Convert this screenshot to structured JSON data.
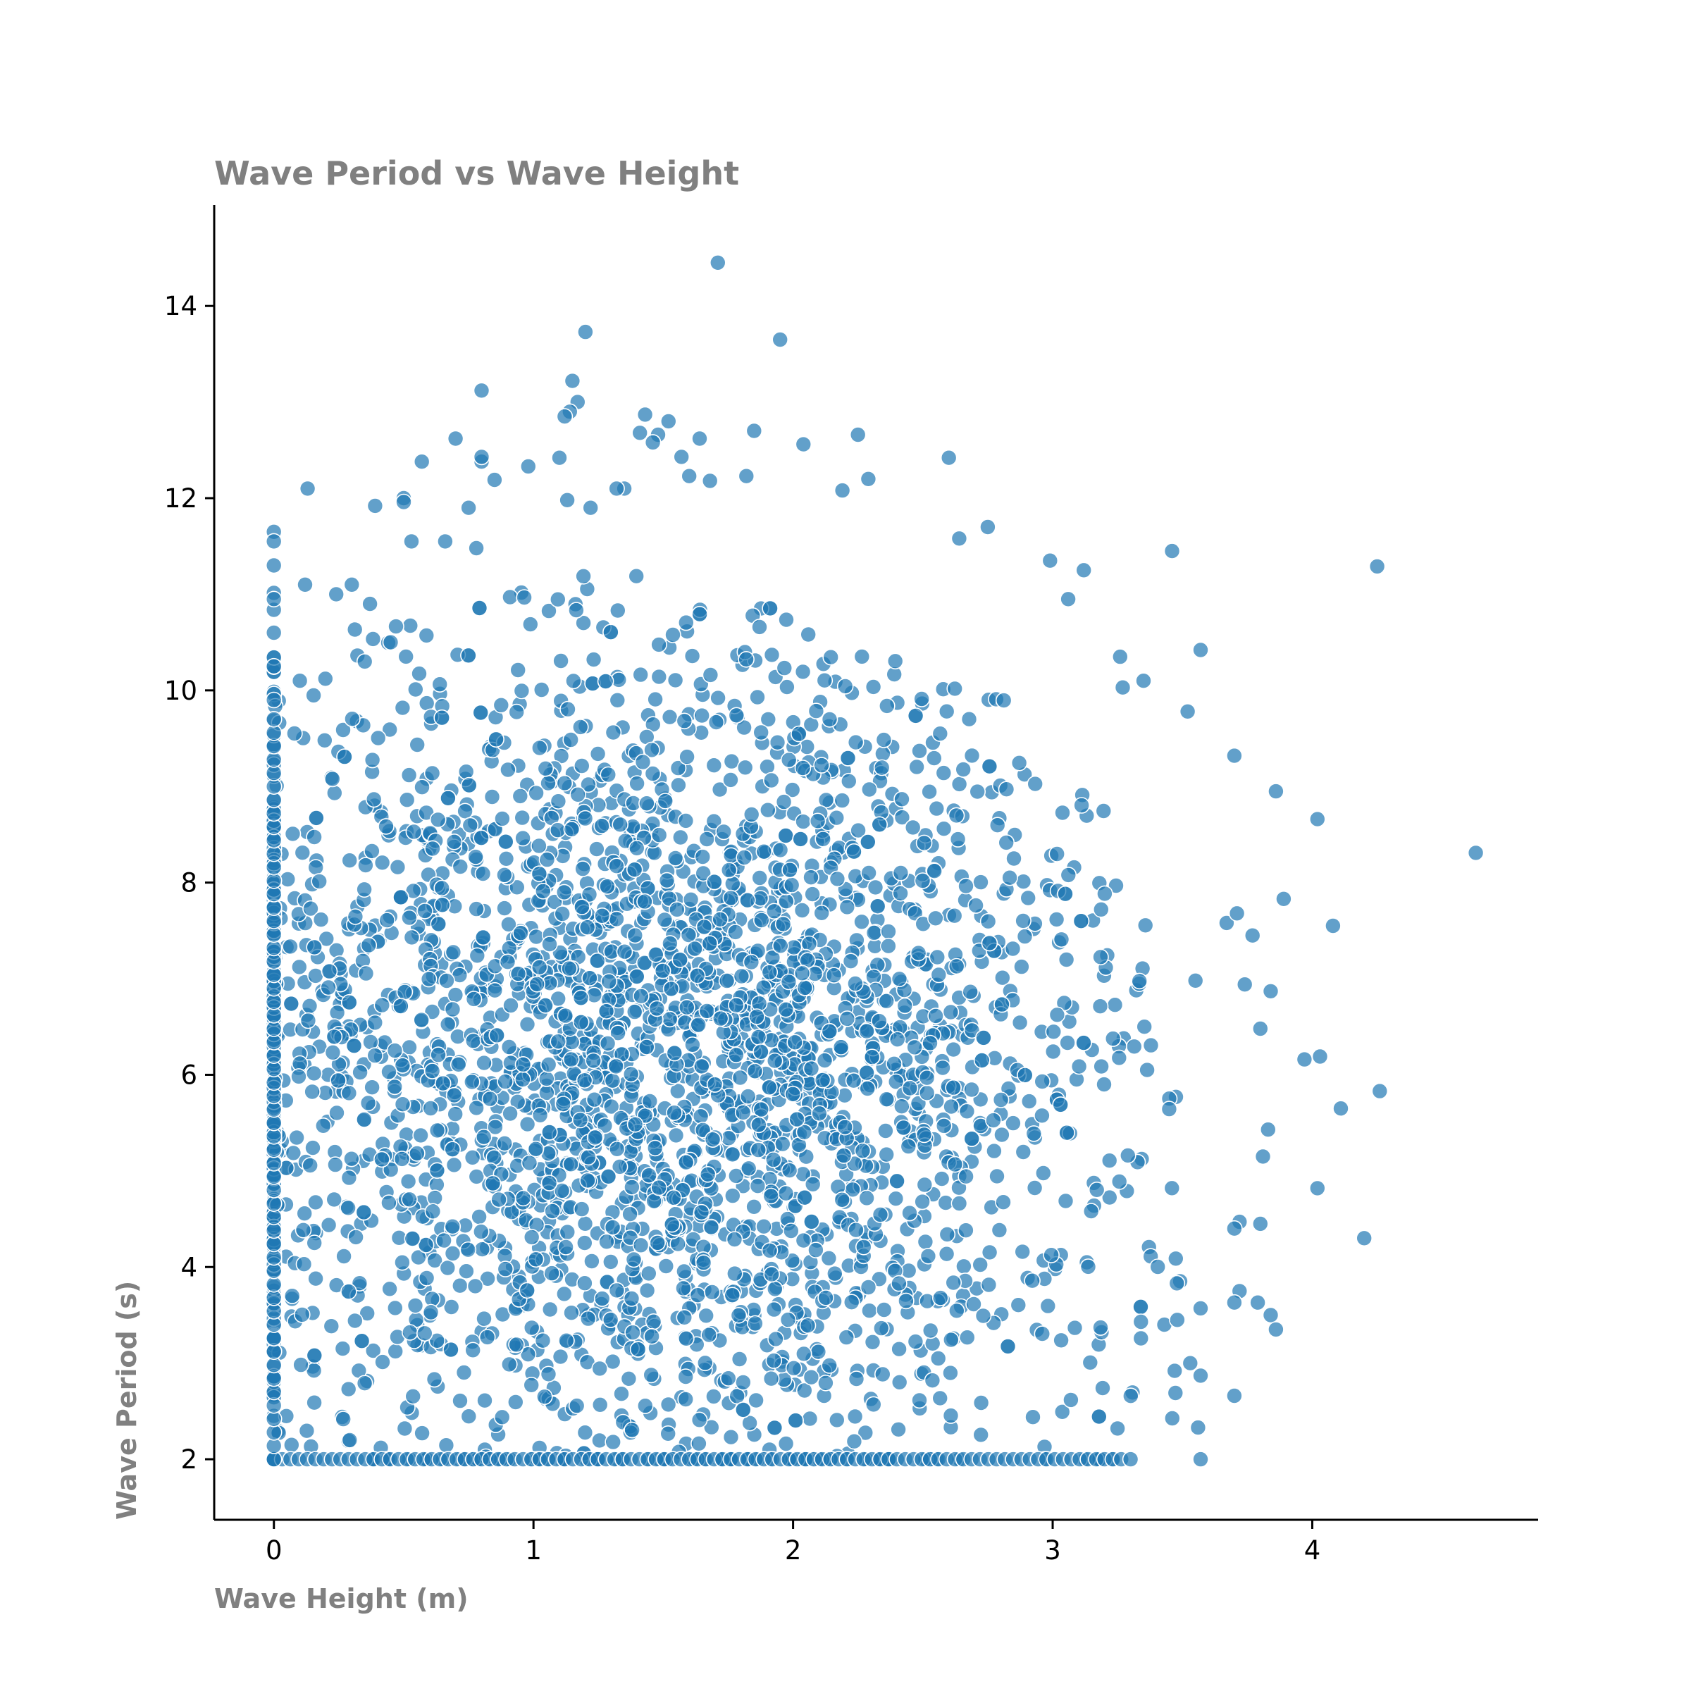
{
  "chart_data": {
    "type": "scatter",
    "title": "Wave Period vs Wave Height",
    "xlabel": "Wave Height (m)",
    "ylabel": "Wave Period (s)",
    "xlim": [
      -0.23,
      4.87
    ],
    "ylim": [
      1.37,
      15.05
    ],
    "xticks": [
      0,
      1,
      2,
      3,
      4
    ],
    "yticks": [
      2,
      4,
      6,
      8,
      10,
      12,
      14
    ],
    "grid": false,
    "legend": "none",
    "marker_color": "#1f77b4",
    "marker_edge_color": "#ffffff",
    "marker_alpha": 0.7,
    "series": [
      {
        "points": [
          [
            1.71,
            14.45
          ],
          [
            1.2,
            13.73
          ],
          [
            1.95,
            13.65
          ],
          [
            1.15,
            13.22
          ],
          [
            0.8,
            13.12
          ],
          [
            1.17,
            13.0
          ],
          [
            1.14,
            12.9
          ],
          [
            1.12,
            12.85
          ],
          [
            1.43,
            12.87
          ],
          [
            1.52,
            12.8
          ],
          [
            1.41,
            12.68
          ],
          [
            1.48,
            12.66
          ],
          [
            1.46,
            12.58
          ],
          [
            0.7,
            12.62
          ],
          [
            1.64,
            12.62
          ],
          [
            2.04,
            12.56
          ],
          [
            2.25,
            12.66
          ],
          [
            1.85,
            12.7
          ],
          [
            0.57,
            12.38
          ],
          [
            0.8,
            12.38
          ],
          [
            0.8,
            12.43
          ],
          [
            1.57,
            12.43
          ],
          [
            2.6,
            12.42
          ],
          [
            1.1,
            12.42
          ],
          [
            0.98,
            12.33
          ],
          [
            0.13,
            12.1
          ],
          [
            1.35,
            12.1
          ],
          [
            1.32,
            12.1
          ],
          [
            0.85,
            12.19
          ],
          [
            1.68,
            12.18
          ],
          [
            1.82,
            12.23
          ],
          [
            1.6,
            12.23
          ],
          [
            2.29,
            12.2
          ],
          [
            2.19,
            12.08
          ],
          [
            0.5,
            12.0
          ],
          [
            0.5,
            11.96
          ],
          [
            0.39,
            11.92
          ],
          [
            1.13,
            11.98
          ],
          [
            1.22,
            11.9
          ],
          [
            0.75,
            11.9
          ],
          [
            3.46,
            11.45
          ],
          [
            4.25,
            11.29
          ],
          [
            2.99,
            11.35
          ],
          [
            3.12,
            11.25
          ],
          [
            3.06,
            10.95
          ],
          [
            2.75,
            11.7
          ],
          [
            2.64,
            11.58
          ],
          [
            0.0,
            11.65
          ],
          [
            0.0,
            11.55
          ],
          [
            0.0,
            11.3
          ],
          [
            0.0,
            10.95
          ],
          [
            0.0,
            10.6
          ],
          [
            0.0,
            10.25
          ],
          [
            0.0,
            9.9
          ],
          [
            0.12,
            11.1
          ],
          [
            0.3,
            11.1
          ],
          [
            0.24,
            11.0
          ],
          [
            0.53,
            11.55
          ],
          [
            0.66,
            11.55
          ],
          [
            0.78,
            11.48
          ],
          [
            0.37,
            10.9
          ],
          [
            0.35,
            10.3
          ],
          [
            0.45,
            10.5
          ],
          [
            0.1,
            10.1
          ],
          [
            3.26,
            10.35
          ],
          [
            3.27,
            10.03
          ],
          [
            3.35,
            10.1
          ],
          [
            3.57,
            10.42
          ],
          [
            3.52,
            9.78
          ],
          [
            3.7,
            9.32
          ],
          [
            3.86,
            8.95
          ],
          [
            4.02,
            8.66
          ],
          [
            4.63,
            8.31
          ],
          [
            3.89,
            7.83
          ],
          [
            4.08,
            7.55
          ],
          [
            3.67,
            7.58
          ],
          [
            3.71,
            7.68
          ],
          [
            3.77,
            7.45
          ],
          [
            3.55,
            6.98
          ],
          [
            3.74,
            6.94
          ],
          [
            3.84,
            6.87
          ],
          [
            3.8,
            6.48
          ],
          [
            3.97,
            6.16
          ],
          [
            4.03,
            6.19
          ],
          [
            4.26,
            5.83
          ],
          [
            4.11,
            5.65
          ],
          [
            3.83,
            5.43
          ],
          [
            3.81,
            5.15
          ],
          [
            4.02,
            4.82
          ],
          [
            4.2,
            4.3
          ],
          [
            3.8,
            4.45
          ],
          [
            3.72,
            4.47
          ],
          [
            3.7,
            4.4
          ],
          [
            3.72,
            3.75
          ],
          [
            3.79,
            3.63
          ],
          [
            3.84,
            3.5
          ],
          [
            3.86,
            3.35
          ],
          [
            3.7,
            3.63
          ],
          [
            3.57,
            3.57
          ],
          [
            3.7,
            2.66
          ],
          [
            3.53,
            3.0
          ],
          [
            3.57,
            2.87
          ],
          [
            3.56,
            2.33
          ],
          [
            3.57,
            2.0
          ],
          [
            3.3,
            2.0
          ],
          [
            3.25,
            2.32
          ],
          [
            3.34,
            3.43
          ],
          [
            3.43,
            3.4
          ],
          [
            3.48,
            3.45
          ],
          [
            3.47,
            2.92
          ]
        ]
      }
    ]
  }
}
